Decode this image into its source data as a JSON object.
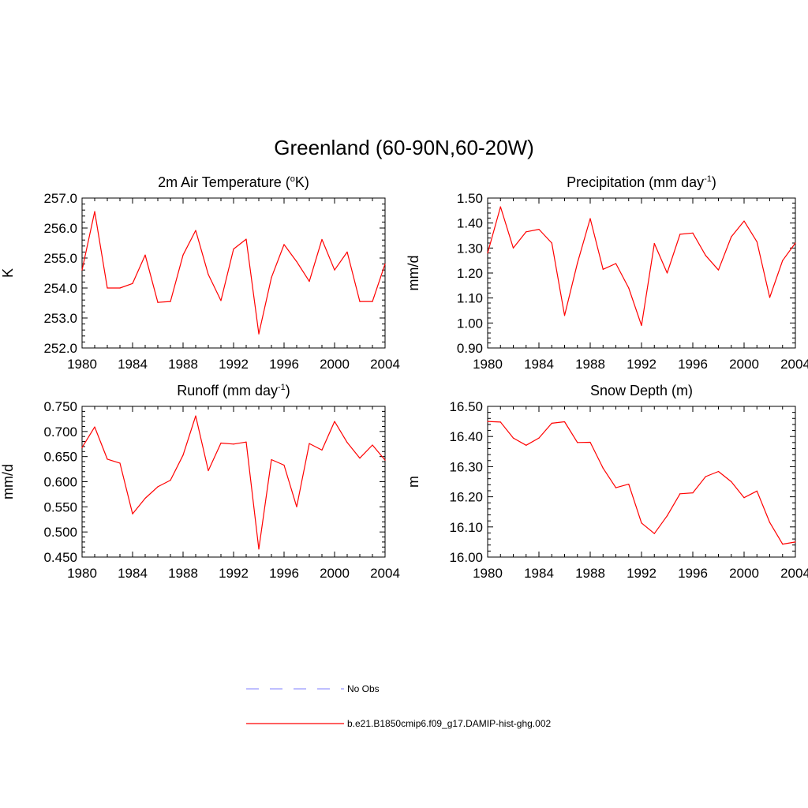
{
  "figure": {
    "title": "Greenland (60-90N,60-20W)"
  },
  "legend": {
    "entries": [
      {
        "label": "No Obs",
        "color": "#9999ff",
        "dash": true
      },
      {
        "label": "b.e21.B1850cmip6.f09_g17.DAMIP-hist-ghg.002",
        "color": "#ff0000",
        "dash": false
      }
    ]
  },
  "chart_data": [
    {
      "type": "line",
      "title": "2m Air Temperature (ºK)",
      "title_main": "2m Air Temperature (",
      "title_sup": "o",
      "title_tail": "K)",
      "ylabel": "K",
      "xlim": [
        1980,
        2004
      ],
      "ylim": [
        252.0,
        257.0
      ],
      "xticks": [
        1980,
        1984,
        1988,
        1992,
        1996,
        2000,
        2004
      ],
      "yticks": [
        "252.0",
        "253.0",
        "254.0",
        "255.0",
        "256.0",
        "257.0"
      ],
      "x": [
        1980,
        1981,
        1982,
        1983,
        1984,
        1985,
        1986,
        1987,
        1988,
        1989,
        1990,
        1991,
        1992,
        1993,
        1994,
        1995,
        1996,
        1997,
        1998,
        1999,
        2000,
        2001,
        2002,
        2003,
        2004
      ],
      "series": [
        {
          "name": "b.e21.B1850cmip6.f09_g17.DAMIP-hist-ghg.002",
          "color": "#ff0000",
          "values": [
            254.6,
            256.55,
            254.0,
            254.0,
            254.15,
            255.1,
            253.52,
            253.55,
            255.1,
            255.92,
            254.45,
            253.58,
            255.3,
            255.63,
            252.47,
            254.35,
            255.45,
            254.88,
            254.22,
            255.62,
            254.6,
            255.2,
            253.55,
            253.55,
            254.8
          ]
        }
      ]
    },
    {
      "type": "line",
      "title": "Precipitation (mm day-1)",
      "title_main": "Precipitation (mm day",
      "title_sup": "-1",
      "title_tail": ")",
      "ylabel": "mm/d",
      "xlim": [
        1980,
        2004
      ],
      "ylim": [
        0.9,
        1.5
      ],
      "xticks": [
        1980,
        1984,
        1988,
        1992,
        1996,
        2000,
        2004
      ],
      "yticks": [
        "0.90",
        "1.00",
        "1.10",
        "1.20",
        "1.30",
        "1.40",
        "1.50"
      ],
      "x": [
        1980,
        1981,
        1982,
        1983,
        1984,
        1985,
        1986,
        1987,
        1988,
        1989,
        1990,
        1991,
        1992,
        1993,
        1994,
        1995,
        1996,
        1997,
        1998,
        1999,
        2000,
        2001,
        2002,
        2003,
        2004
      ],
      "series": [
        {
          "name": "b.e21.B1850cmip6.f09_g17.DAMIP-hist-ghg.002",
          "color": "#ff0000",
          "values": [
            1.28,
            1.465,
            1.3,
            1.365,
            1.375,
            1.32,
            1.03,
            1.24,
            1.418,
            1.215,
            1.238,
            1.14,
            0.99,
            1.318,
            1.2,
            1.355,
            1.36,
            1.27,
            1.212,
            1.345,
            1.408,
            1.325,
            1.102,
            1.25,
            1.32
          ]
        }
      ]
    },
    {
      "type": "line",
      "title": "Runoff (mm day-1)",
      "title_main": "Runoff (mm day",
      "title_sup": "-1",
      "title_tail": ")",
      "ylabel": "mm/d",
      "xlim": [
        1980,
        2004
      ],
      "ylim": [
        0.45,
        0.75
      ],
      "xticks": [
        1980,
        1984,
        1988,
        1992,
        1996,
        2000,
        2004
      ],
      "yticks": [
        "0.450",
        "0.500",
        "0.550",
        "0.600",
        "0.650",
        "0.700",
        "0.750"
      ],
      "x": [
        1980,
        1981,
        1982,
        1983,
        1984,
        1985,
        1986,
        1987,
        1988,
        1989,
        1990,
        1991,
        1992,
        1993,
        1994,
        1995,
        1996,
        1997,
        1998,
        1999,
        2000,
        2001,
        2002,
        2003,
        2004
      ],
      "series": [
        {
          "name": "b.e21.B1850cmip6.f09_g17.DAMIP-hist-ghg.002",
          "color": "#ff0000",
          "values": [
            0.668,
            0.709,
            0.645,
            0.637,
            0.536,
            0.567,
            0.59,
            0.603,
            0.653,
            0.731,
            0.622,
            0.677,
            0.675,
            0.679,
            0.466,
            0.644,
            0.633,
            0.55,
            0.676,
            0.663,
            0.72,
            0.678,
            0.647,
            0.673,
            0.643
          ]
        }
      ]
    },
    {
      "type": "line",
      "title": "Snow Depth (m)",
      "title_main": "Snow Depth (m)",
      "title_sup": "",
      "title_tail": "",
      "ylabel": "m",
      "xlim": [
        1980,
        2004
      ],
      "ylim": [
        16.0,
        16.5
      ],
      "xticks": [
        1980,
        1984,
        1988,
        1992,
        1996,
        2000,
        2004
      ],
      "yticks": [
        "16.00",
        "16.10",
        "16.20",
        "16.30",
        "16.40",
        "16.50"
      ],
      "x": [
        1980,
        1981,
        1982,
        1983,
        1984,
        1985,
        1986,
        1987,
        1988,
        1989,
        1990,
        1991,
        1992,
        1993,
        1994,
        1995,
        1996,
        1997,
        1998,
        1999,
        2000,
        2001,
        2002,
        2003,
        2004
      ],
      "series": [
        {
          "name": "b.e21.B1850cmip6.f09_g17.DAMIP-hist-ghg.002",
          "color": "#ff0000",
          "values": [
            16.45,
            16.448,
            16.395,
            16.371,
            16.395,
            16.444,
            16.449,
            16.38,
            16.381,
            16.295,
            16.23,
            16.242,
            16.113,
            16.078,
            16.137,
            16.21,
            16.213,
            16.267,
            16.284,
            16.25,
            16.197,
            16.219,
            16.115,
            16.043,
            16.05
          ]
        }
      ]
    }
  ]
}
